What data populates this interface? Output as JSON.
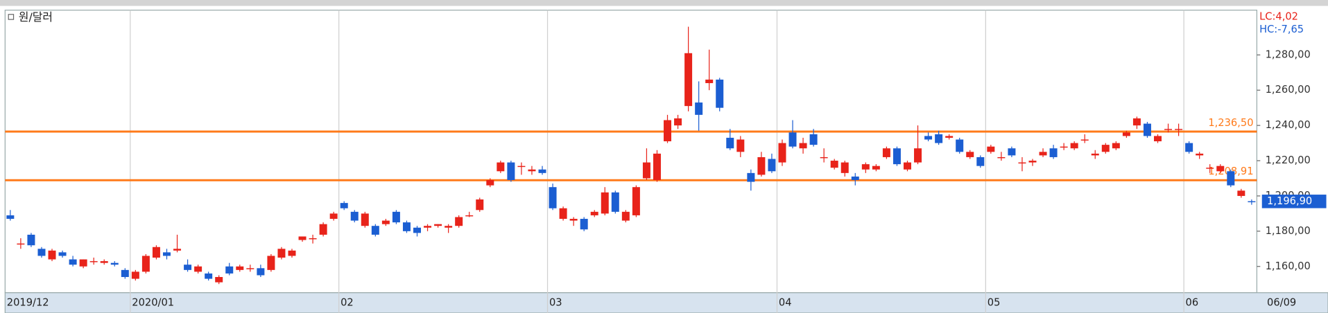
{
  "chart_data": {
    "type": "candlestick",
    "title": "원/달러",
    "annotations": [
      "LC:4,02",
      "HC:-7,65"
    ],
    "categories": [
      "2019/12",
      null,
      null,
      null,
      null,
      null,
      null,
      null,
      null,
      null,
      null,
      null,
      "2020/01",
      null,
      null,
      null,
      null,
      null,
      null,
      null,
      null,
      null,
      null,
      null,
      null,
      null,
      null,
      null,
      null,
      null,
      null,
      null,
      "02",
      null,
      null,
      null,
      null,
      null,
      null,
      null,
      null,
      null,
      null,
      null,
      null,
      null,
      null,
      null,
      null,
      null,
      null,
      null,
      "03",
      null,
      null,
      null,
      null,
      null,
      null,
      null,
      null,
      null,
      null,
      null,
      null,
      null,
      null,
      null,
      null,
      null,
      null,
      null,
      null,
      null,
      "04",
      null,
      null,
      null,
      null,
      null,
      null,
      null,
      null,
      null,
      null,
      null,
      null,
      null,
      null,
      null,
      null,
      null,
      null,
      null,
      "05",
      null,
      null,
      null,
      null,
      null,
      null,
      null,
      null,
      null,
      null,
      null,
      null,
      null,
      null,
      null,
      null,
      null,
      null,
      "06",
      null,
      null,
      null,
      null,
      null,
      "06/09"
    ],
    "open": [
      1189,
      1173,
      1178,
      1170,
      1164,
      1168,
      1164,
      1160,
      1163,
      1162,
      1162,
      1158,
      1153,
      1157,
      1165,
      1168,
      1169,
      1161,
      1157,
      1156,
      1151,
      1160,
      1158,
      1159,
      1159,
      1158,
      1165,
      1166,
      1175,
      1176,
      1178,
      1187,
      1196,
      1191,
      1183,
      1183,
      1184,
      1191,
      1185,
      1182,
      1182,
      1183,
      1182,
      1183,
      1189,
      1192,
      1206,
      1214,
      1219,
      1217,
      1214,
      1215,
      1205,
      1187,
      1186,
      1187,
      1189,
      1190,
      1202,
      1186,
      1189,
      1210,
      1209,
      1231,
      1240,
      1251,
      1253,
      1264,
      1266,
      1233,
      1225,
      1213,
      1212,
      1221,
      1219,
      1236,
      1227,
      1235,
      1222,
      1216,
      1213,
      1211,
      1215,
      1215,
      1222,
      1227,
      1215,
      1219,
      1234,
      1235,
      1233,
      1232,
      1222,
      1222,
      1225,
      1222,
      1227,
      1219,
      1219,
      1223,
      1227,
      1228,
      1227,
      1232,
      1223,
      1225,
      1227,
      1234,
      1240,
      1241,
      1231,
      1238,
      1238,
      1230,
      1223,
      1216,
      1214,
      1214,
      1200,
      1197
    ],
    "high": [
      1192,
      1176,
      1179,
      1171,
      1170,
      1169,
      1166,
      1164,
      1165,
      1164,
      1163,
      1159,
      1158,
      1167,
      1172,
      1170,
      1178,
      1164,
      1161,
      1157,
      1155,
      1162,
      1161,
      1161,
      1161,
      1167,
      1171,
      1170,
      1177,
      1178,
      1185,
      1191,
      1197,
      1192,
      1191,
      1184,
      1187,
      1192,
      1186,
      1183,
      1184,
      1184,
      1184,
      1189,
      1191,
      1199,
      1210,
      1220,
      1220,
      1219,
      1217,
      1217,
      1207,
      1194,
      1188,
      1188,
      1192,
      1205,
      1203,
      1192,
      1206,
      1227,
      1226,
      1246,
      1246,
      1296,
      1265,
      1283,
      1267,
      1238,
      1234,
      1215,
      1225,
      1224,
      1232,
      1243,
      1233,
      1238,
      1227,
      1221,
      1220,
      1213,
      1219,
      1218,
      1228,
      1228,
      1220,
      1240,
      1236,
      1237,
      1235,
      1233,
      1226,
      1223,
      1229,
      1225,
      1228,
      1222,
      1221,
      1227,
      1229,
      1230,
      1231,
      1235,
      1226,
      1230,
      1231,
      1237,
      1245,
      1242,
      1235,
      1241,
      1241,
      1231,
      1225,
      1218,
      1218,
      1215,
      1204,
      1198
    ],
    "low": [
      1186,
      1170,
      1171,
      1165,
      1163,
      1165,
      1160,
      1159,
      1161,
      1161,
      1160,
      1153,
      1152,
      1156,
      1164,
      1164,
      1168,
      1157,
      1156,
      1152,
      1150,
      1155,
      1157,
      1157,
      1154,
      1157,
      1164,
      1165,
      1174,
      1173,
      1177,
      1186,
      1192,
      1185,
      1182,
      1177,
      1183,
      1184,
      1179,
      1177,
      1180,
      1182,
      1179,
      1182,
      1188,
      1191,
      1205,
      1213,
      1208,
      1212,
      1212,
      1212,
      1192,
      1186,
      1183,
      1180,
      1188,
      1189,
      1190,
      1185,
      1188,
      1209,
      1208,
      1230,
      1238,
      1248,
      1237,
      1260,
      1248,
      1226,
      1222,
      1203,
      1211,
      1213,
      1217,
      1227,
      1224,
      1228,
      1219,
      1215,
      1211,
      1206,
      1213,
      1214,
      1221,
      1217,
      1214,
      1218,
      1231,
      1229,
      1232,
      1224,
      1221,
      1216,
      1224,
      1220,
      1222,
      1214,
      1217,
      1222,
      1221,
      1226,
      1226,
      1230,
      1221,
      1224,
      1226,
      1233,
      1238,
      1233,
      1230,
      1236,
      1234,
      1224,
      1221,
      1213,
      1213,
      1205,
      1199,
      1195
    ],
    "close": [
      1187,
      1173,
      1172,
      1166,
      1169,
      1166,
      1161,
      1164,
      1163,
      1163,
      1161,
      1154,
      1157,
      1166,
      1171,
      1166,
      1170,
      1158,
      1160,
      1153,
      1154,
      1156,
      1160,
      1159,
      1155,
      1166,
      1170,
      1169,
      1177,
      1176,
      1184,
      1190,
      1193,
      1186,
      1190,
      1178,
      1186,
      1185,
      1180,
      1179,
      1183,
      1184,
      1183,
      1188,
      1189,
      1198,
      1209,
      1219,
      1209,
      1217,
      1215,
      1213,
      1193,
      1193,
      1187,
      1181,
      1191,
      1202,
      1191,
      1191,
      1205,
      1219,
      1224,
      1243,
      1244,
      1281,
      1246,
      1266,
      1250,
      1227,
      1232,
      1208,
      1222,
      1214,
      1230,
      1228,
      1230,
      1229,
      1222,
      1220,
      1219,
      1209,
      1218,
      1217,
      1227,
      1218,
      1219,
      1227,
      1232,
      1230,
      1234,
      1225,
      1225,
      1217,
      1228,
      1222,
      1223,
      1219,
      1220,
      1225,
      1222,
      1228,
      1230,
      1232,
      1224,
      1229,
      1230,
      1236,
      1244,
      1234,
      1234,
      1238,
      1238,
      1225,
      1224,
      1216,
      1217,
      1206,
      1203,
      1196.9
    ],
    "up_color": "#e8231a",
    "down_color": "#1b5ed2",
    "ylim": [
      1145.1,
      1305.4
    ],
    "yticks": [
      {
        "value": 1160,
        "label": "1,160,00"
      },
      {
        "value": 1180,
        "label": "1,180,00"
      },
      {
        "value": 1200,
        "label": "1,200,00"
      },
      {
        "value": 1220,
        "label": "1,220,00"
      },
      {
        "value": 1240,
        "label": "1,240,00"
      },
      {
        "value": 1260,
        "label": "1,260,00"
      },
      {
        "value": 1280,
        "label": "1,280,00"
      }
    ],
    "hlines": [
      {
        "value": 1236.5,
        "label": "1,236,50"
      },
      {
        "value": 1208.91,
        "label": "1,208,91"
      }
    ],
    "hline_color": "#ff7a1a",
    "last": {
      "value": 1196.9,
      "label": "1,196,90"
    },
    "grid": true
  }
}
